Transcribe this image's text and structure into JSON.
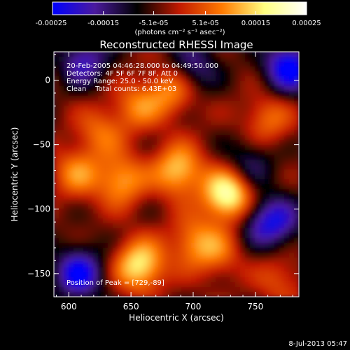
{
  "chart_data": {
    "type": "heatmap",
    "title": "Reconstructed RHESSI Image",
    "xlabel": "Heliocentric X (arcsec)",
    "ylabel": "Heliocentric Y (arcsec)",
    "xlim": [
      588,
      785
    ],
    "ylim": [
      -168,
      22
    ],
    "xticks": [
      600,
      650,
      700,
      750
    ],
    "yticks": [
      0,
      -50,
      -100,
      -150
    ],
    "colorbar": {
      "range": [
        -0.00025,
        0.00025
      ],
      "ticks": [
        "-0.00025",
        "-0.00015",
        "-5.1e-05",
        "5.1e-05",
        "0.00015",
        "0.00025"
      ],
      "unit": "(photons cm⁻² s⁻¹ asec⁻²)",
      "colors": [
        "#0000ff",
        "#4b1a9e",
        "#000000",
        "#c21a00",
        "#ff7a00",
        "#ffff80",
        "#ffffff"
      ]
    },
    "annotations": {
      "time": "20-Feb-2005 04:46:28.000 to 04:49:50.000",
      "detectors": "Detectors: 4F 5F 6F 7F 8F, Att 0",
      "energy": "Energy Range: 25.0 - 50.0 keV",
      "clean": "Clean    Total counts: 6.43E+03",
      "peak": "Position of Peak = [729,-89]"
    },
    "peak": [
      729,
      -89
    ],
    "sources": [
      {
        "x": 728,
        "y": -89,
        "intensity": 0.00025
      },
      {
        "x": 657,
        "y": -144,
        "intensity": 0.00021
      },
      {
        "x": 688,
        "y": -70,
        "intensity": 0.00018
      },
      {
        "x": 642,
        "y": -78,
        "intensity": 0.00015
      },
      {
        "x": 606,
        "y": -72,
        "intensity": 0.00012
      },
      {
        "x": 683,
        "y": -8,
        "intensity": 0.00013
      },
      {
        "x": 625,
        "y": -40,
        "intensity": 0.0001
      },
      {
        "x": 655,
        "y": -20,
        "intensity": 0.00011
      },
      {
        "x": 760,
        "y": -30,
        "intensity": 0.00011
      },
      {
        "x": 720,
        "y": -135,
        "intensity": 9e-05
      },
      {
        "x": 770,
        "y": -155,
        "intensity": 8e-05
      },
      {
        "x": 700,
        "y": -125,
        "intensity": 0.00012
      },
      {
        "x": 608,
        "y": -150,
        "intensity": -0.0002
      },
      {
        "x": 777,
        "y": 10,
        "intensity": -0.00022
      },
      {
        "x": 700,
        "y": 10,
        "intensity": -0.00012
      },
      {
        "x": 612,
        "y": 15,
        "intensity": -0.00015
      },
      {
        "x": 745,
        "y": -65,
        "intensity": -0.0001
      },
      {
        "x": 755,
        "y": -110,
        "intensity": -0.00011
      },
      {
        "x": 770,
        "y": -110,
        "intensity": -0.00011
      }
    ]
  },
  "footer": {
    "timestamp": "8-Jul-2013 05:47"
  }
}
